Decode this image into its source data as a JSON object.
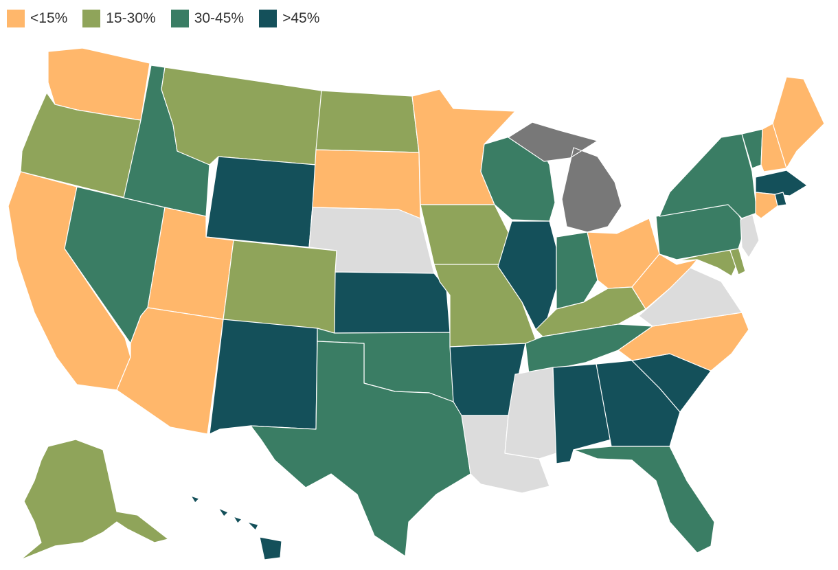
{
  "legend": {
    "items": [
      {
        "key": "lt15",
        "label": "<15%",
        "color": "#FFB76B"
      },
      {
        "key": "15_30",
        "label": "15-30%",
        "color": "#8FA45A"
      },
      {
        "key": "30_45",
        "label": "30-45%",
        "color": "#3A7D64"
      },
      {
        "key": "gt45",
        "label": ">45%",
        "color": "#14505A"
      }
    ]
  },
  "colors": {
    "no_data": "#DCDCDC",
    "highlight_gray": "#787878",
    "border": "#ffffff"
  },
  "map_data": {
    "type": "choropleth",
    "region": "United States",
    "states": {
      "WA": "lt15",
      "OR": "15_30",
      "CA": "lt15",
      "NV": "30_45",
      "ID": "30_45",
      "MT": "15_30",
      "WY": "gt45",
      "UT": "lt15",
      "AZ": "lt15",
      "CO": "15_30",
      "NM": "gt45",
      "ND": "15_30",
      "SD": "lt15",
      "NE": "no_data",
      "KS": "gt45",
      "OK": "30_45",
      "TX": "30_45",
      "MN": "lt15",
      "IA": "15_30",
      "MO": "15_30",
      "AR": "gt45",
      "LA": "no_data",
      "WI": "30_45",
      "IL": "gt45",
      "MI": "gray",
      "IN": "30_45",
      "OH": "lt15",
      "KY": "15_30",
      "TN": "30_45",
      "MS": "no_data",
      "AL": "gt45",
      "GA": "gt45",
      "FL": "30_45",
      "SC": "gt45",
      "NC": "lt15",
      "VA": "no_data",
      "WV": "lt15",
      "MD": "15_30",
      "DE": "15_30",
      "PA": "30_45",
      "NY": "30_45",
      "NJ": "no_data",
      "CT": "lt15",
      "RI": "gt45",
      "MA": "gt45",
      "VT": "30_45",
      "NH": "lt15",
      "ME": "lt15",
      "AK": "15_30",
      "HI": "gt45"
    }
  }
}
